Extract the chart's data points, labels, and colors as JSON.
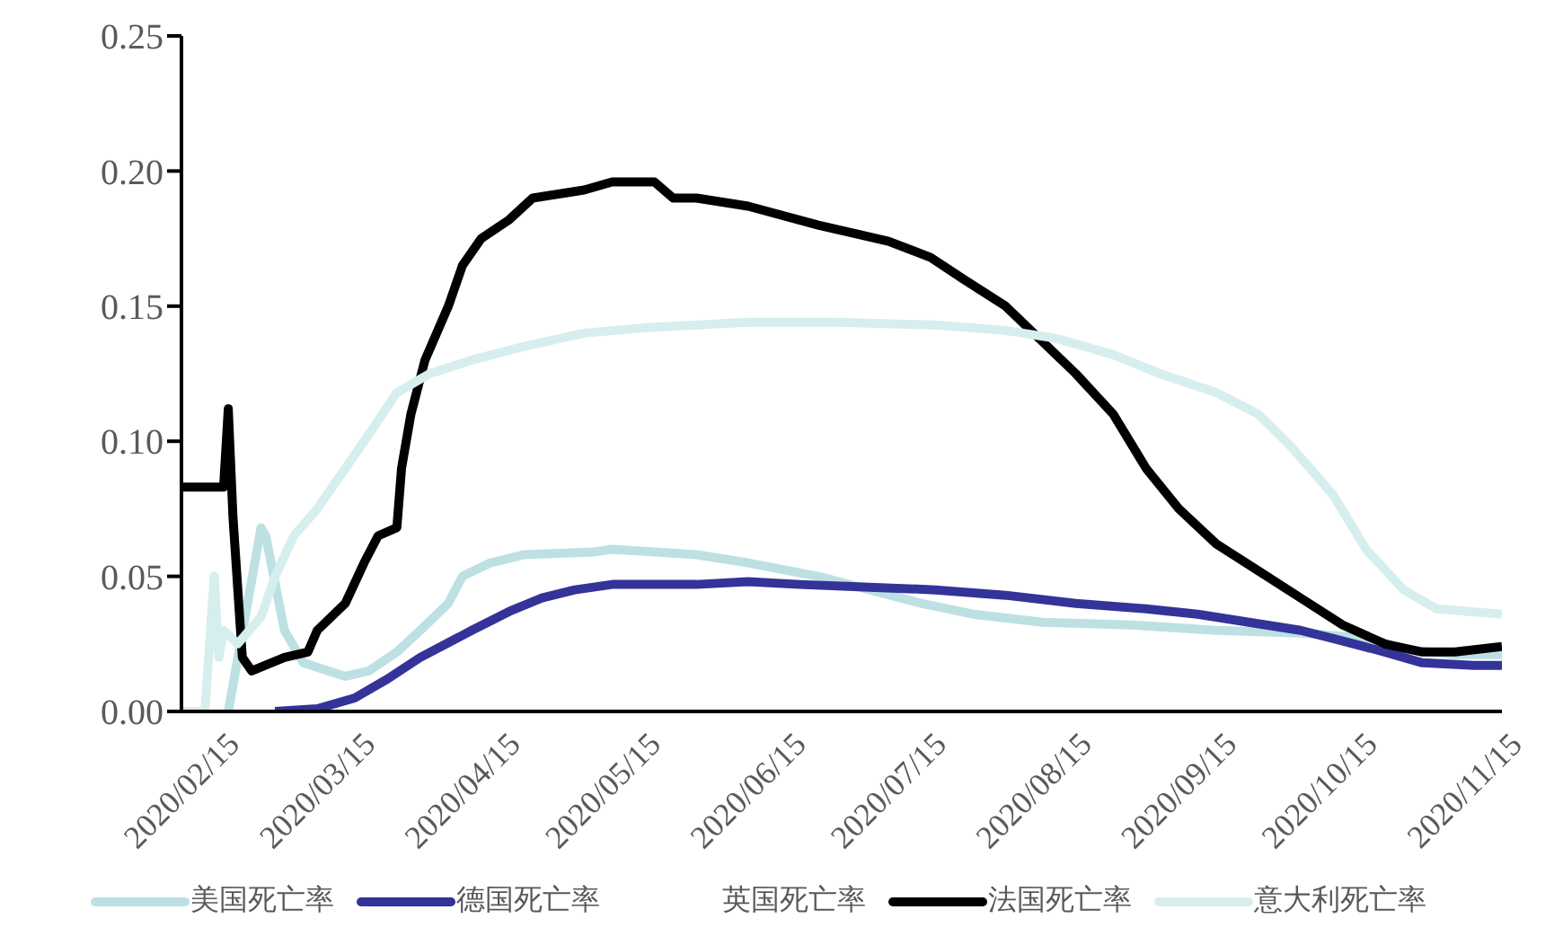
{
  "chart_data": {
    "type": "line",
    "xlim": [
      "2020-02-15",
      "2020-11-23"
    ],
    "xticks": [
      {
        "value": "2020-02-15",
        "label": "2020/02/15"
      },
      {
        "value": "2020-03-15",
        "label": "2020/03/15"
      },
      {
        "value": "2020-04-15",
        "label": "2020/04/15"
      },
      {
        "value": "2020-05-15",
        "label": "2020/05/15"
      },
      {
        "value": "2020-06-15",
        "label": "2020/06/15"
      },
      {
        "value": "2020-07-15",
        "label": "2020/07/15"
      },
      {
        "value": "2020-08-15",
        "label": "2020/08/15"
      },
      {
        "value": "2020-09-15",
        "label": "2020/09/15"
      },
      {
        "value": "2020-10-15",
        "label": "2020/10/15"
      },
      {
        "value": "2020-11-15",
        "label": "2020/11/15"
      }
    ],
    "ylim": [
      0,
      0.25
    ],
    "yticks": [
      {
        "value": 0,
        "label": "0.00"
      },
      {
        "value": 0.05,
        "label": "0.05"
      },
      {
        "value": 0.1,
        "label": "0.10"
      },
      {
        "value": 0.15,
        "label": "0.15"
      },
      {
        "value": 0.2,
        "label": "0.20"
      },
      {
        "value": 0.25,
        "label": "0.25"
      }
    ],
    "grid": false,
    "legend": "bottom",
    "marker": "none",
    "line_style": "solid",
    "series": [
      {
        "name": "美国死亡率",
        "color": "#bde0e3",
        "x": [
          "2020-02-25",
          "2020-03-03",
          "2020-03-04",
          "2020-03-08",
          "2020-03-12",
          "2020-03-21",
          "2020-03-26",
          "2020-04-01",
          "2020-04-06",
          "2020-04-12",
          "2020-04-15",
          "2020-04-21",
          "2020-04-28",
          "2020-05-13",
          "2020-05-17",
          "2020-06-04",
          "2020-06-15",
          "2020-06-30",
          "2020-07-11",
          "2020-07-22",
          "2020-08-02",
          "2020-08-17",
          "2020-09-05",
          "2020-09-23",
          "2020-10-11",
          "2020-10-26",
          "2020-11-02",
          "2020-11-13",
          "2020-11-23"
        ],
        "values": [
          0,
          0.068,
          0.065,
          0.03,
          0.018,
          0.013,
          0.015,
          0.022,
          0.03,
          0.04,
          0.05,
          0.055,
          0.058,
          0.059,
          0.06,
          0.058,
          0.055,
          0.05,
          0.045,
          0.04,
          0.036,
          0.033,
          0.032,
          0.03,
          0.029,
          0.027,
          0.023,
          0.021,
          0.021
        ]
      },
      {
        "name": "德国死亡率",
        "color": "#333399",
        "x": [
          "2020-03-06",
          "2020-03-15",
          "2020-03-23",
          "2020-03-30",
          "2020-04-06",
          "2020-04-17",
          "2020-04-25",
          "2020-05-02",
          "2020-05-09",
          "2020-05-17",
          "2020-06-04",
          "2020-06-15",
          "2020-06-26",
          "2020-07-11",
          "2020-07-25",
          "2020-08-09",
          "2020-08-24",
          "2020-09-08",
          "2020-09-19",
          "2020-09-30",
          "2020-10-11",
          "2020-10-18",
          "2020-10-29",
          "2020-11-06",
          "2020-11-17",
          "2020-11-23"
        ],
        "values": [
          0,
          0.001,
          0.005,
          0.012,
          0.02,
          0.03,
          0.037,
          0.042,
          0.045,
          0.047,
          0.047,
          0.048,
          0.047,
          0.046,
          0.045,
          0.043,
          0.04,
          0.038,
          0.036,
          0.033,
          0.03,
          0.027,
          0.022,
          0.018,
          0.017,
          0.017
        ]
      },
      {
        "name": "英国死亡率"
      },
      {
        "name": "法国死亡率",
        "color": "#000000",
        "x": [
          "2020-02-15",
          "2020-02-24",
          "2020-02-25",
          "2020-02-26",
          "2020-02-28",
          "2020-03-01",
          "2020-03-08",
          "2020-03-13",
          "2020-03-15",
          "2020-03-21",
          "2020-03-25",
          "2020-03-28",
          "2020-04-01",
          "2020-04-02",
          "2020-04-04",
          "2020-04-07",
          "2020-04-12",
          "2020-04-15",
          "2020-04-19",
          "2020-04-25",
          "2020-04-30",
          "2020-05-11",
          "2020-05-17",
          "2020-05-26",
          "2020-05-30",
          "2020-06-04",
          "2020-06-15",
          "2020-06-30",
          "2020-07-15",
          "2020-07-24",
          "2020-07-31",
          "2020-08-09",
          "2020-08-15",
          "2020-08-24",
          "2020-09-01",
          "2020-09-08",
          "2020-09-15",
          "2020-09-23",
          "2020-10-02",
          "2020-10-11",
          "2020-10-20",
          "2020-10-29",
          "2020-11-06",
          "2020-11-13",
          "2020-11-23"
        ],
        "values": [
          0.083,
          0.083,
          0.112,
          0.072,
          0.02,
          0.015,
          0.02,
          0.022,
          0.03,
          0.04,
          0.055,
          0.065,
          0.068,
          0.09,
          0.11,
          0.13,
          0.15,
          0.165,
          0.175,
          0.182,
          0.19,
          0.193,
          0.196,
          0.196,
          0.19,
          0.19,
          0.187,
          0.18,
          0.174,
          0.168,
          0.16,
          0.15,
          0.14,
          0.125,
          0.11,
          0.09,
          0.075,
          0.062,
          0.052,
          0.042,
          0.032,
          0.025,
          0.022,
          0.022,
          0.024
        ]
      },
      {
        "name": "意大利死亡率",
        "color": "#d6eeee",
        "x": [
          "2020-02-15",
          "2020-02-20",
          "2020-02-22",
          "2020-02-23",
          "2020-02-24",
          "2020-02-27",
          "2020-03-03",
          "2020-03-06",
          "2020-03-10",
          "2020-03-15",
          "2020-03-21",
          "2020-03-27",
          "2020-04-01",
          "2020-04-08",
          "2020-04-17",
          "2020-04-28",
          "2020-05-11",
          "2020-05-24",
          "2020-06-15",
          "2020-07-04",
          "2020-07-25",
          "2020-08-09",
          "2020-08-20",
          "2020-09-01",
          "2020-09-11",
          "2020-09-23",
          "2020-10-02",
          "2020-10-09",
          "2020-10-18",
          "2020-10-25",
          "2020-11-02",
          "2020-11-09",
          "2020-11-23"
        ],
        "values": [
          0,
          0,
          0.05,
          0.02,
          0.03,
          0.025,
          0.035,
          0.05,
          0.065,
          0.075,
          0.09,
          0.105,
          0.118,
          0.125,
          0.13,
          0.135,
          0.14,
          0.142,
          0.144,
          0.144,
          0.143,
          0.141,
          0.138,
          0.132,
          0.125,
          0.118,
          0.11,
          0.098,
          0.08,
          0.06,
          0.045,
          0.038,
          0.036
        ]
      }
    ]
  }
}
